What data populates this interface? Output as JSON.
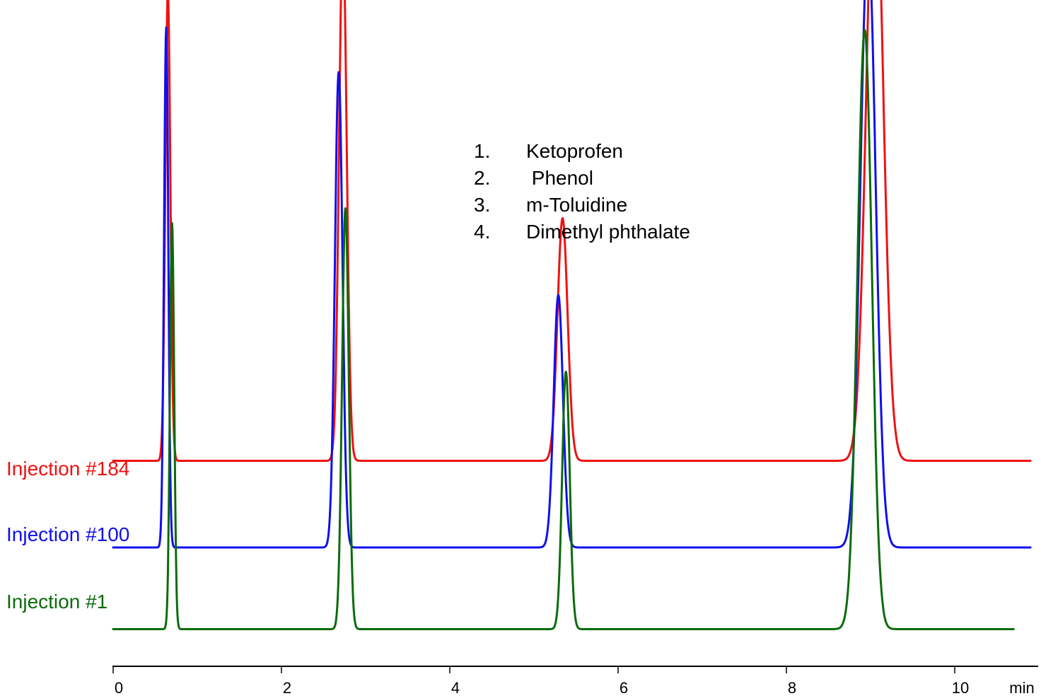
{
  "chart_data": {
    "type": "line",
    "xlabel": "min",
    "xlim": [
      0,
      10.9
    ],
    "xticks": [
      0,
      2,
      4,
      6,
      8,
      10
    ],
    "ylim": [
      0,
      1.05
    ],
    "grid": false,
    "legend": {
      "placement": "top-center",
      "entries": [
        {
          "number": "1.",
          "name": "Ketoprofen"
        },
        {
          "number": "2.",
          "name": " Phenol"
        },
        {
          "number": "3.",
          "name": "m-Toluidine"
        },
        {
          "number": "4.",
          "name": "Dimethyl phthalate"
        }
      ]
    },
    "series": [
      {
        "name": "Injection #184",
        "color": "#ee1111",
        "offset": 0.355,
        "x_end": 10.9,
        "peaks": [
          {
            "rt": 0.65,
            "height": 0.95,
            "width": 0.03
          },
          {
            "rt": 2.73,
            "height": 1.07,
            "width": 0.045
          },
          {
            "rt": 5.34,
            "height": 0.49,
            "width": 0.06
          },
          {
            "rt": 9.05,
            "height": 1.25,
            "width": 0.1
          }
        ]
      },
      {
        "name": "Injection #100",
        "color": "#0f0fee",
        "offset": 0.18,
        "x_end": 10.9,
        "peaks": [
          {
            "rt": 0.63,
            "height": 1.05,
            "width": 0.025
          },
          {
            "rt": 2.68,
            "height": 0.96,
            "width": 0.045
          },
          {
            "rt": 5.29,
            "height": 0.51,
            "width": 0.055
          },
          {
            "rt": 8.97,
            "height": 1.23,
            "width": 0.09
          }
        ]
      },
      {
        "name": "Injection #1",
        "color": "#0b6b0b",
        "offset": 0.015,
        "x_end": 10.7,
        "peaks": [
          {
            "rt": 0.7,
            "height": 0.82,
            "width": 0.025
          },
          {
            "rt": 2.76,
            "height": 0.85,
            "width": 0.04
          },
          {
            "rt": 5.38,
            "height": 0.52,
            "width": 0.045
          },
          {
            "rt": 8.93,
            "height": 1.21,
            "width": 0.085
          }
        ]
      }
    ]
  }
}
